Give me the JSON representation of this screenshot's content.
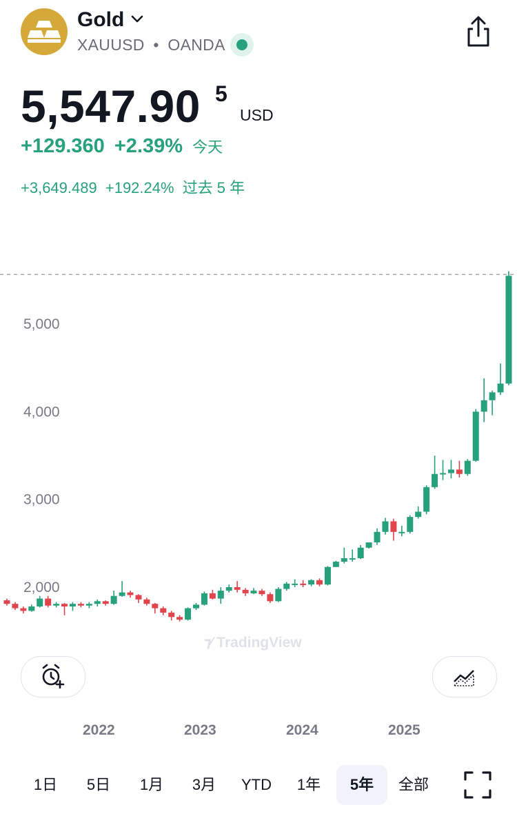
{
  "header": {
    "symbol_name": "Gold",
    "ticker": "XAUUSD",
    "separator": "•",
    "exchange": "OANDA",
    "market_status_color": "#26a17b"
  },
  "quote": {
    "price_main": "5,547.90",
    "price_superscript": "5",
    "currency": "USD",
    "change_today": "+129.360",
    "change_today_pct": "+2.39%",
    "change_today_label": "今天",
    "change_period": "+3,649.489",
    "change_period_pct": "+192.24%",
    "change_period_label": "过去 5 年"
  },
  "colors": {
    "up": "#26a17b",
    "down": "#e0454e",
    "text": "#131722",
    "muted": "#787b86"
  },
  "icons": {
    "logo": "gold-bars-icon",
    "dropdown": "chevron-down-icon",
    "share": "share-icon",
    "alert": "alarm-add-icon",
    "indicators": "indicators-icon",
    "fullscreen": "fullscreen-icon"
  },
  "chart_watermark": "TradingView",
  "chart_data": {
    "type": "candlestick",
    "title": "",
    "y_ticks": [
      "5,000",
      "4,000",
      "3,000",
      "2,000"
    ],
    "y_tick_values": [
      5000,
      4000,
      3000,
      2000
    ],
    "x_ticks": [
      "2022",
      "2023",
      "2024",
      "2025"
    ],
    "ylim": [
      1500,
      5750
    ],
    "last_price_line": 5547.9,
    "candles": [
      [
        1850,
        1810,
        1870,
        1790
      ],
      [
        1810,
        1760,
        1830,
        1740
      ],
      [
        1760,
        1730,
        1780,
        1700
      ],
      [
        1730,
        1780,
        1800,
        1720
      ],
      [
        1780,
        1870,
        1900,
        1770
      ],
      [
        1870,
        1790,
        1900,
        1770
      ],
      [
        1790,
        1810,
        1830,
        1770
      ],
      [
        1810,
        1780,
        1820,
        1680
      ],
      [
        1780,
        1810,
        1830,
        1730
      ],
      [
        1810,
        1790,
        1830,
        1770
      ],
      [
        1790,
        1810,
        1830,
        1760
      ],
      [
        1810,
        1840,
        1860,
        1780
      ],
      [
        1840,
        1810,
        1850,
        1790
      ],
      [
        1810,
        1900,
        1960,
        1800
      ],
      [
        1900,
        1940,
        2070,
        1890
      ],
      [
        1940,
        1910,
        1960,
        1880
      ],
      [
        1910,
        1860,
        1920,
        1820
      ],
      [
        1860,
        1810,
        1880,
        1790
      ],
      [
        1810,
        1760,
        1820,
        1700
      ],
      [
        1760,
        1710,
        1780,
        1680
      ],
      [
        1710,
        1660,
        1730,
        1620
      ],
      [
        1660,
        1630,
        1680,
        1610
      ],
      [
        1630,
        1760,
        1770,
        1620
      ],
      [
        1760,
        1800,
        1820,
        1740
      ],
      [
        1800,
        1930,
        1950,
        1790
      ],
      [
        1930,
        1870,
        1970,
        1860
      ],
      [
        1870,
        1960,
        2000,
        1810
      ],
      [
        1960,
        2000,
        2030,
        1940
      ],
      [
        2000,
        1970,
        2070,
        1940
      ],
      [
        1970,
        1930,
        1990,
        1900
      ],
      [
        1930,
        1960,
        1990,
        1920
      ],
      [
        1960,
        1920,
        1980,
        1900
      ],
      [
        1920,
        1840,
        1940,
        1820
      ],
      [
        1840,
        1980,
        2000,
        1830
      ],
      [
        1980,
        2040,
        2060,
        1960
      ],
      [
        2040,
        2040,
        2090,
        2000
      ],
      [
        2040,
        2030,
        2080,
        2000
      ],
      [
        2030,
        2080,
        2090,
        2010
      ],
      [
        2080,
        2030,
        2100,
        2010
      ],
      [
        2030,
        2230,
        2240,
        2020
      ],
      [
        2230,
        2290,
        2300,
        2230
      ],
      [
        2290,
        2330,
        2450,
        2270
      ],
      [
        2330,
        2330,
        2430,
        2290
      ],
      [
        2330,
        2450,
        2480,
        2320
      ],
      [
        2450,
        2510,
        2510,
        2440
      ],
      [
        2510,
        2630,
        2670,
        2480
      ],
      [
        2630,
        2750,
        2790,
        2600
      ],
      [
        2750,
        2630,
        2780,
        2530
      ],
      [
        2630,
        2630,
        2700,
        2580
      ],
      [
        2630,
        2800,
        2820,
        2610
      ],
      [
        2800,
        2860,
        2920,
        2780
      ],
      [
        2860,
        3140,
        3160,
        2830
      ],
      [
        3140,
        3290,
        3500,
        3120
      ],
      [
        3290,
        3300,
        3450,
        3220
      ],
      [
        3300,
        3340,
        3450,
        3240
      ],
      [
        3340,
        3290,
        3440,
        3250
      ],
      [
        3290,
        3440,
        3460,
        3270
      ],
      [
        3440,
        4000,
        4030,
        3430
      ],
      [
        4000,
        4130,
        4380,
        3880
      ],
      [
        4130,
        4220,
        4240,
        3960
      ],
      [
        4220,
        4320,
        4550,
        4190
      ],
      [
        4320,
        5547.9,
        5600,
        4300
      ]
    ]
  },
  "timeframes": [
    "1日",
    "5日",
    "1月",
    "3月",
    "YTD",
    "1年",
    "5年",
    "全部"
  ],
  "selected_timeframe": "5年"
}
